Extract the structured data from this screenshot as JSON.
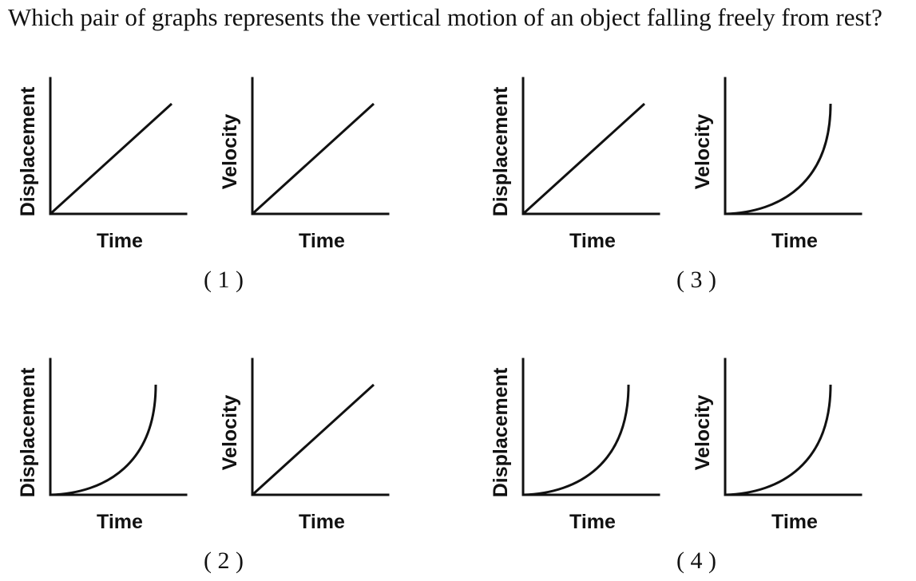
{
  "question": "Which pair of graphs represents the vertical motion of an object falling freely from rest?",
  "options": [
    {
      "label": "( 1 )",
      "graphs": [
        {
          "ylabel": "Displacement",
          "xlabel": "Time",
          "shape": "linear"
        },
        {
          "ylabel": "Velocity",
          "xlabel": "Time",
          "shape": "linear"
        }
      ]
    },
    {
      "label": "( 2 )",
      "graphs": [
        {
          "ylabel": "Displacement",
          "xlabel": "Time",
          "shape": "curve-up"
        },
        {
          "ylabel": "Velocity",
          "xlabel": "Time",
          "shape": "linear"
        }
      ]
    },
    {
      "label": "( 3 )",
      "graphs": [
        {
          "ylabel": "Displacement",
          "xlabel": "Time",
          "shape": "linear"
        },
        {
          "ylabel": "Velocity",
          "xlabel": "Time",
          "shape": "curve-up"
        }
      ]
    },
    {
      "label": "( 4 )",
      "graphs": [
        {
          "ylabel": "Displacement",
          "xlabel": "Time",
          "shape": "curve-up"
        },
        {
          "ylabel": "Velocity",
          "xlabel": "Time",
          "shape": "curve-up"
        }
      ]
    }
  ]
}
